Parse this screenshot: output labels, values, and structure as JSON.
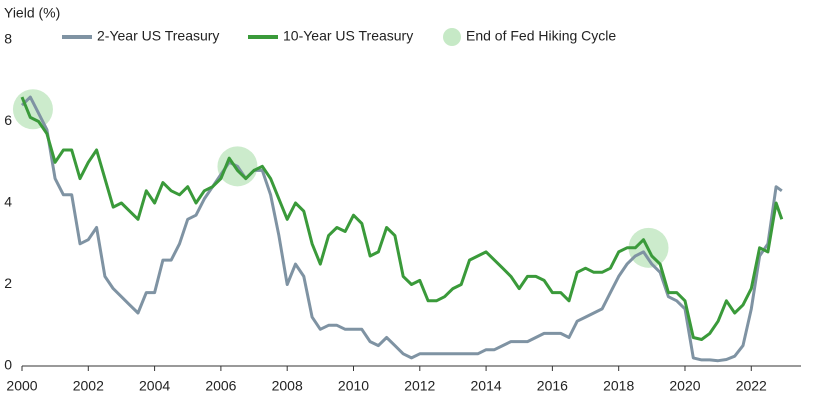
{
  "chart_data": {
    "type": "line",
    "y_label": "Yield (%)",
    "x": [
      2000,
      2000.25,
      2000.5,
      2000.75,
      2001,
      2001.25,
      2001.5,
      2001.75,
      2002,
      2002.25,
      2002.5,
      2002.75,
      2003,
      2003.25,
      2003.5,
      2003.75,
      2004,
      2004.25,
      2004.5,
      2004.75,
      2005,
      2005.25,
      2005.5,
      2005.75,
      2006,
      2006.25,
      2006.5,
      2006.75,
      2007,
      2007.25,
      2007.5,
      2007.75,
      2008,
      2008.25,
      2008.5,
      2008.75,
      2009,
      2009.25,
      2009.5,
      2009.75,
      2010,
      2010.25,
      2010.5,
      2010.75,
      2011,
      2011.25,
      2011.5,
      2011.75,
      2012,
      2012.25,
      2012.5,
      2012.75,
      2013,
      2013.25,
      2013.5,
      2013.75,
      2014,
      2014.25,
      2014.5,
      2014.75,
      2015,
      2015.25,
      2015.5,
      2015.75,
      2016,
      2016.25,
      2016.5,
      2016.75,
      2017,
      2017.25,
      2017.5,
      2017.75,
      2018,
      2018.25,
      2018.5,
      2018.75,
      2019,
      2019.25,
      2019.5,
      2019.75,
      2020,
      2020.25,
      2020.5,
      2020.75,
      2021,
      2021.25,
      2021.5,
      2021.75,
      2022,
      2022.25,
      2022.5,
      2022.75,
      2022.92
    ],
    "series": [
      {
        "name": "2-Year US Treasury",
        "color": "#7f93a3",
        "values": [
          6.4,
          6.6,
          6.2,
          5.8,
          4.6,
          4.2,
          4.2,
          3.0,
          3.1,
          3.4,
          2.2,
          1.9,
          1.7,
          1.5,
          1.3,
          1.8,
          1.8,
          2.6,
          2.6,
          3.0,
          3.6,
          3.7,
          4.1,
          4.4,
          4.7,
          5.0,
          4.9,
          4.6,
          4.8,
          4.8,
          4.2,
          3.2,
          2.0,
          2.5,
          2.2,
          1.2,
          0.9,
          1.0,
          1.0,
          0.9,
          0.9,
          0.9,
          0.6,
          0.5,
          0.7,
          0.5,
          0.3,
          0.2,
          0.3,
          0.3,
          0.3,
          0.3,
          0.3,
          0.3,
          0.3,
          0.3,
          0.4,
          0.4,
          0.5,
          0.6,
          0.6,
          0.6,
          0.7,
          0.8,
          0.8,
          0.8,
          0.7,
          1.1,
          1.2,
          1.3,
          1.4,
          1.8,
          2.2,
          2.5,
          2.7,
          2.8,
          2.5,
          2.3,
          1.7,
          1.6,
          1.4,
          0.2,
          0.15,
          0.15,
          0.13,
          0.16,
          0.24,
          0.5,
          1.4,
          2.7,
          3.0,
          4.4,
          4.3
        ]
      },
      {
        "name": "10-Year US Treasury",
        "color": "#3a9a3a",
        "values": [
          6.6,
          6.1,
          6.0,
          5.7,
          5.0,
          5.3,
          5.3,
          4.6,
          5.0,
          5.3,
          4.6,
          3.9,
          4.0,
          3.8,
          3.6,
          4.3,
          4.0,
          4.5,
          4.3,
          4.2,
          4.4,
          4.0,
          4.3,
          4.4,
          4.6,
          5.1,
          4.8,
          4.6,
          4.8,
          4.9,
          4.6,
          4.1,
          3.6,
          4.0,
          3.8,
          3.0,
          2.5,
          3.2,
          3.4,
          3.3,
          3.7,
          3.5,
          2.7,
          2.8,
          3.4,
          3.2,
          2.2,
          2.0,
          2.1,
          1.6,
          1.6,
          1.7,
          1.9,
          2.0,
          2.6,
          2.7,
          2.8,
          2.6,
          2.4,
          2.2,
          1.9,
          2.2,
          2.2,
          2.1,
          1.8,
          1.8,
          1.6,
          2.3,
          2.4,
          2.3,
          2.3,
          2.4,
          2.8,
          2.9,
          2.9,
          3.1,
          2.7,
          2.5,
          1.8,
          1.8,
          1.6,
          0.7,
          0.65,
          0.8,
          1.1,
          1.6,
          1.3,
          1.5,
          1.9,
          2.9,
          2.8,
          4.0,
          3.6
        ]
      }
    ],
    "highlights": {
      "name": "End of Fed Hiking Cycle",
      "color": "#c6e9c6",
      "x": [
        2000.33,
        2006.5,
        2018.9
      ],
      "values": [
        6.3,
        4.9,
        2.9
      ]
    },
    "xlim": [
      2000,
      2023.5
    ],
    "xticks": [
      2000,
      2002,
      2004,
      2006,
      2008,
      2010,
      2012,
      2014,
      2016,
      2018,
      2020,
      2022
    ],
    "ylim": [
      0,
      8
    ],
    "yticks": [
      0,
      2,
      4,
      6,
      8
    ],
    "grid": false
  }
}
